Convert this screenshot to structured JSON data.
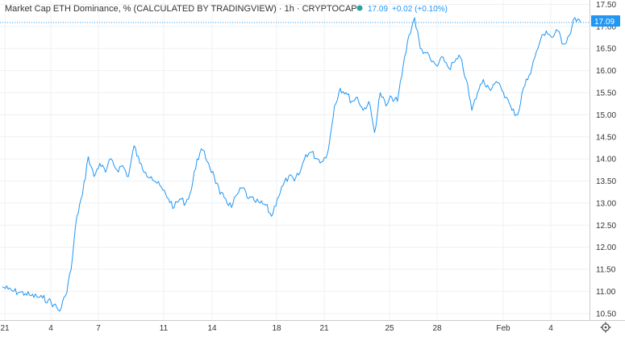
{
  "header": {
    "title": "Market Cap ETH Dominance, % (CALCULATED BY TRADINGVIEW) · 1h · CRYPTOCAP",
    "last_value": "17.09",
    "change": "+0.02 (+0.10%)"
  },
  "price_badge": "17.09",
  "colors": {
    "line": "#2196f3",
    "badge_bg": "#2196f3",
    "status_dot": "#26a69a"
  },
  "chart_data": {
    "type": "line",
    "title": "Market Cap ETH Dominance, % (CALCULATED BY TRADINGVIEW) · 1h · CRYPTOCAP",
    "xlabel": "",
    "ylabel": "",
    "x_ticks": [
      "21",
      "4",
      "7",
      "11",
      "14",
      "18",
      "21",
      "25",
      "28",
      "Feb",
      "4"
    ],
    "y_ticks": [
      "10.50",
      "11.00",
      "11.50",
      "12.00",
      "12.50",
      "13.00",
      "13.50",
      "14.00",
      "14.50",
      "15.00",
      "15.50",
      "16.00",
      "16.50",
      "17.00",
      "17.50"
    ],
    "ylim": [
      10.35,
      17.6
    ],
    "grid": true,
    "series": [
      {
        "values": [
          11.1,
          11.05,
          11.0,
          10.98,
          10.95,
          10.9,
          10.88,
          10.85,
          10.8,
          10.7,
          10.55,
          10.9,
          11.5,
          12.7,
          13.2,
          14.05,
          13.6,
          13.9,
          13.7,
          14.0,
          13.75,
          13.85,
          13.6,
          14.3,
          13.9,
          13.7,
          13.6,
          13.45,
          13.3,
          13.1,
          12.9,
          13.1,
          13.0,
          13.3,
          14.0,
          14.2,
          13.9,
          13.6,
          13.2,
          13.1,
          12.9,
          13.2,
          13.35,
          13.1,
          13.05,
          13.0,
          12.95,
          12.7,
          13.1,
          13.4,
          13.6,
          13.5,
          13.7,
          14.1,
          14.15,
          14.0,
          13.95,
          14.25,
          15.2,
          15.6,
          15.5,
          15.3,
          15.4,
          15.1,
          15.3,
          14.6,
          15.5,
          15.2,
          15.4,
          15.3,
          16.1,
          16.8,
          17.2,
          16.5,
          16.4,
          16.2,
          16.1,
          16.3,
          16.05,
          16.2,
          16.3,
          15.8,
          15.1,
          15.5,
          15.8,
          15.6,
          15.7,
          15.65,
          15.4,
          15.1,
          15.0,
          15.6,
          15.9,
          16.3,
          16.7,
          16.9,
          16.75,
          16.9,
          16.6,
          16.8,
          17.2,
          17.09
        ]
      }
    ]
  }
}
